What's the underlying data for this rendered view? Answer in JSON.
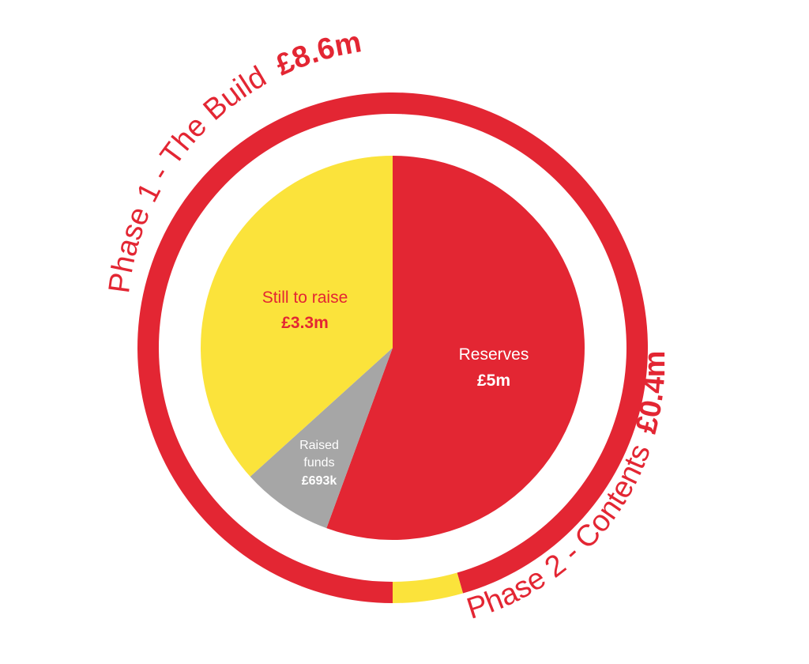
{
  "chart_data": [
    {
      "type": "pie",
      "title": "",
      "categories": [
        "Reserves",
        "Raised funds",
        "Still to raise"
      ],
      "values_display": [
        "£5m",
        "£693k",
        "£3.3m"
      ],
      "values": [
        5.0,
        0.693,
        3.3
      ],
      "unit": "£m",
      "colors": [
        "#e32633",
        "#a6a6a6",
        "#fbe33b"
      ]
    },
    {
      "type": "pie",
      "title": "",
      "categories": [
        "Phase 1 - The Build",
        "Phase 2 - Contents"
      ],
      "values_display": [
        "£8.6m",
        "£0.4m"
      ],
      "values": [
        8.6,
        0.4
      ],
      "unit": "£m",
      "colors": [
        "#e32633",
        "#fbe33b"
      ]
    }
  ],
  "labels": {
    "reserves": {
      "name": "Reserves",
      "value": "£5m"
    },
    "raised": {
      "name_line1": "Raised",
      "name_line2": "funds",
      "value": "£693k"
    },
    "still": {
      "name": "Still to raise",
      "value": "£3.3m"
    },
    "phase1": {
      "name": "Phase 1 - The Build",
      "value": "£8.6m"
    },
    "phase2": {
      "name": "Phase 2 - Contents",
      "value": "£0.4m"
    }
  }
}
